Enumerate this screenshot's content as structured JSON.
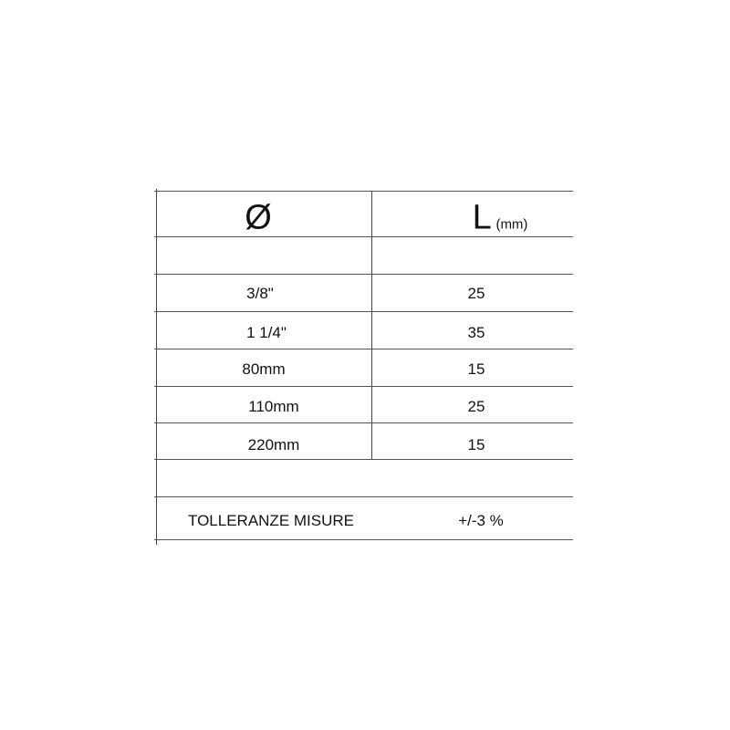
{
  "table": {
    "header": {
      "diameter_symbol": "Ø",
      "length_symbol": "L",
      "length_unit": "(mm)"
    },
    "rows": [
      {
        "diameter": "3/8\"",
        "length": "25"
      },
      {
        "diameter": "1 1/4\"",
        "length": "35"
      },
      {
        "diameter": "80mm",
        "length": "15"
      },
      {
        "diameter": "110mm",
        "length": "25"
      },
      {
        "diameter": "220mm",
        "length": "15"
      }
    ],
    "tolerance": {
      "label": "TOLLERANZE MISURE",
      "value": "+/-3 %"
    }
  }
}
